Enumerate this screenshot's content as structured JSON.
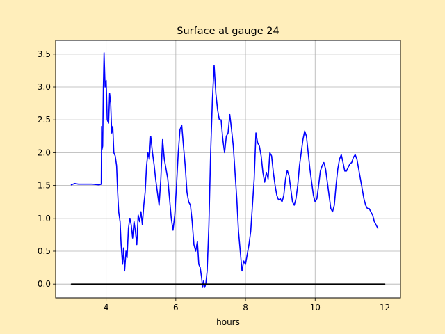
{
  "colors": {
    "figure_background": "#ffeebb",
    "plot_background": "#ffffff",
    "grid": "#b0b0b0",
    "surface_line": "#0000ff",
    "zero_line": "#000000"
  },
  "chart_data": {
    "type": "line",
    "title": "Surface at gauge 24",
    "xlabel": "hours",
    "ylabel": "",
    "xlim": [
      2.55,
      12.45
    ],
    "ylim": [
      -0.21,
      3.71
    ],
    "xticks": [
      4,
      6,
      8,
      10,
      12
    ],
    "xtick_labels": [
      "4",
      "6",
      "8",
      "10",
      "12"
    ],
    "yticks": [
      0.0,
      0.5,
      1.0,
      1.5,
      2.0,
      2.5,
      3.0,
      3.5
    ],
    "ytick_labels": [
      "0.0",
      "0.5",
      "1.0",
      "1.5",
      "2.0",
      "2.5",
      "3.0",
      "3.5"
    ],
    "grid": true,
    "legend": false,
    "series": [
      {
        "color": "#0000ff",
        "points": [
          [
            3.0,
            1.51
          ],
          [
            3.1,
            1.53
          ],
          [
            3.2,
            1.52
          ],
          [
            3.4,
            1.52
          ],
          [
            3.6,
            1.52
          ],
          [
            3.8,
            1.51
          ],
          [
            3.86,
            1.52
          ],
          [
            3.87,
            2.4
          ],
          [
            3.88,
            2.05
          ],
          [
            3.9,
            2.1
          ],
          [
            3.92,
            3.0
          ],
          [
            3.94,
            3.52
          ],
          [
            3.97,
            3.0
          ],
          [
            4.0,
            3.1
          ],
          [
            4.03,
            2.5
          ],
          [
            4.07,
            2.45
          ],
          [
            4.1,
            2.9
          ],
          [
            4.13,
            2.75
          ],
          [
            4.16,
            2.3
          ],
          [
            4.19,
            2.4
          ],
          [
            4.22,
            2.0
          ],
          [
            4.26,
            1.95
          ],
          [
            4.3,
            1.8
          ],
          [
            4.33,
            1.4
          ],
          [
            4.36,
            1.1
          ],
          [
            4.4,
            0.95
          ],
          [
            4.43,
            0.6
          ],
          [
            4.47,
            0.3
          ],
          [
            4.5,
            0.55
          ],
          [
            4.53,
            0.2
          ],
          [
            4.57,
            0.5
          ],
          [
            4.6,
            0.4
          ],
          [
            4.64,
            0.85
          ],
          [
            4.68,
            1.0
          ],
          [
            4.72,
            0.9
          ],
          [
            4.76,
            0.7
          ],
          [
            4.8,
            0.95
          ],
          [
            4.84,
            0.8
          ],
          [
            4.88,
            0.6
          ],
          [
            4.92,
            1.05
          ],
          [
            4.96,
            0.95
          ],
          [
            5.0,
            1.1
          ],
          [
            5.04,
            0.9
          ],
          [
            5.08,
            1.2
          ],
          [
            5.12,
            1.4
          ],
          [
            5.16,
            1.8
          ],
          [
            5.2,
            2.0
          ],
          [
            5.24,
            1.9
          ],
          [
            5.28,
            2.25
          ],
          [
            5.33,
            2.0
          ],
          [
            5.38,
            1.8
          ],
          [
            5.42,
            1.6
          ],
          [
            5.47,
            1.4
          ],
          [
            5.52,
            1.2
          ],
          [
            5.57,
            1.6
          ],
          [
            5.62,
            2.2
          ],
          [
            5.67,
            1.9
          ],
          [
            5.72,
            1.75
          ],
          [
            5.77,
            1.6
          ],
          [
            5.82,
            1.3
          ],
          [
            5.87,
            1.0
          ],
          [
            5.92,
            0.82
          ],
          [
            5.97,
            1.05
          ],
          [
            6.02,
            1.5
          ],
          [
            6.07,
            2.0
          ],
          [
            6.12,
            2.35
          ],
          [
            6.17,
            2.42
          ],
          [
            6.22,
            2.1
          ],
          [
            6.27,
            1.8
          ],
          [
            6.32,
            1.4
          ],
          [
            6.37,
            1.25
          ],
          [
            6.42,
            1.2
          ],
          [
            6.47,
            0.95
          ],
          [
            6.52,
            0.6
          ],
          [
            6.57,
            0.5
          ],
          [
            6.62,
            0.65
          ],
          [
            6.66,
            0.3
          ],
          [
            6.7,
            0.25
          ],
          [
            6.74,
            0.1
          ],
          [
            6.77,
            -0.05
          ],
          [
            6.8,
            0.05
          ],
          [
            6.83,
            -0.05
          ],
          [
            6.86,
            0.0
          ],
          [
            6.9,
            0.2
          ],
          [
            6.95,
            0.9
          ],
          [
            7.0,
            2.0
          ],
          [
            7.05,
            2.8
          ],
          [
            7.1,
            3.33
          ],
          [
            7.15,
            2.9
          ],
          [
            7.2,
            2.65
          ],
          [
            7.25,
            2.5
          ],
          [
            7.3,
            2.5
          ],
          [
            7.35,
            2.2
          ],
          [
            7.4,
            2.0
          ],
          [
            7.45,
            2.25
          ],
          [
            7.5,
            2.3
          ],
          [
            7.55,
            2.58
          ],
          [
            7.6,
            2.35
          ],
          [
            7.65,
            2.1
          ],
          [
            7.7,
            1.7
          ],
          [
            7.75,
            1.3
          ],
          [
            7.8,
            0.8
          ],
          [
            7.85,
            0.5
          ],
          [
            7.9,
            0.2
          ],
          [
            7.95,
            0.35
          ],
          [
            8.0,
            0.3
          ],
          [
            8.05,
            0.45
          ],
          [
            8.1,
            0.6
          ],
          [
            8.15,
            0.8
          ],
          [
            8.2,
            1.2
          ],
          [
            8.25,
            1.6
          ],
          [
            8.3,
            2.3
          ],
          [
            8.35,
            2.15
          ],
          [
            8.4,
            2.1
          ],
          [
            8.45,
            1.95
          ],
          [
            8.5,
            1.7
          ],
          [
            8.55,
            1.55
          ],
          [
            8.6,
            1.7
          ],
          [
            8.65,
            1.6
          ],
          [
            8.7,
            2.0
          ],
          [
            8.75,
            1.95
          ],
          [
            8.8,
            1.7
          ],
          [
            8.85,
            1.5
          ],
          [
            8.9,
            1.35
          ],
          [
            8.95,
            1.28
          ],
          [
            9.0,
            1.3
          ],
          [
            9.05,
            1.25
          ],
          [
            9.1,
            1.35
          ],
          [
            9.15,
            1.6
          ],
          [
            9.2,
            1.73
          ],
          [
            9.25,
            1.65
          ],
          [
            9.3,
            1.45
          ],
          [
            9.35,
            1.25
          ],
          [
            9.4,
            1.2
          ],
          [
            9.45,
            1.3
          ],
          [
            9.5,
            1.5
          ],
          [
            9.55,
            1.8
          ],
          [
            9.6,
            2.0
          ],
          [
            9.65,
            2.2
          ],
          [
            9.7,
            2.33
          ],
          [
            9.75,
            2.25
          ],
          [
            9.8,
            2.0
          ],
          [
            9.85,
            1.75
          ],
          [
            9.9,
            1.55
          ],
          [
            9.95,
            1.35
          ],
          [
            10.0,
            1.25
          ],
          [
            10.05,
            1.3
          ],
          [
            10.1,
            1.5
          ],
          [
            10.15,
            1.72
          ],
          [
            10.2,
            1.8
          ],
          [
            10.25,
            1.85
          ],
          [
            10.3,
            1.75
          ],
          [
            10.35,
            1.55
          ],
          [
            10.4,
            1.35
          ],
          [
            10.45,
            1.15
          ],
          [
            10.5,
            1.1
          ],
          [
            10.55,
            1.2
          ],
          [
            10.6,
            1.5
          ],
          [
            10.65,
            1.75
          ],
          [
            10.7,
            1.9
          ],
          [
            10.75,
            1.97
          ],
          [
            10.8,
            1.85
          ],
          [
            10.85,
            1.72
          ],
          [
            10.9,
            1.72
          ],
          [
            10.95,
            1.78
          ],
          [
            11.0,
            1.83
          ],
          [
            11.05,
            1.85
          ],
          [
            11.1,
            1.93
          ],
          [
            11.15,
            1.97
          ],
          [
            11.2,
            1.9
          ],
          [
            11.25,
            1.75
          ],
          [
            11.3,
            1.6
          ],
          [
            11.35,
            1.45
          ],
          [
            11.4,
            1.3
          ],
          [
            11.45,
            1.2
          ],
          [
            11.5,
            1.15
          ],
          [
            11.55,
            1.15
          ],
          [
            11.6,
            1.1
          ],
          [
            11.65,
            1.05
          ],
          [
            11.7,
            0.95
          ],
          [
            11.75,
            0.9
          ],
          [
            11.8,
            0.85
          ]
        ]
      },
      {
        "color": "#000000",
        "points": [
          [
            3.0,
            0.0
          ],
          [
            12.0,
            0.0
          ]
        ]
      }
    ]
  }
}
